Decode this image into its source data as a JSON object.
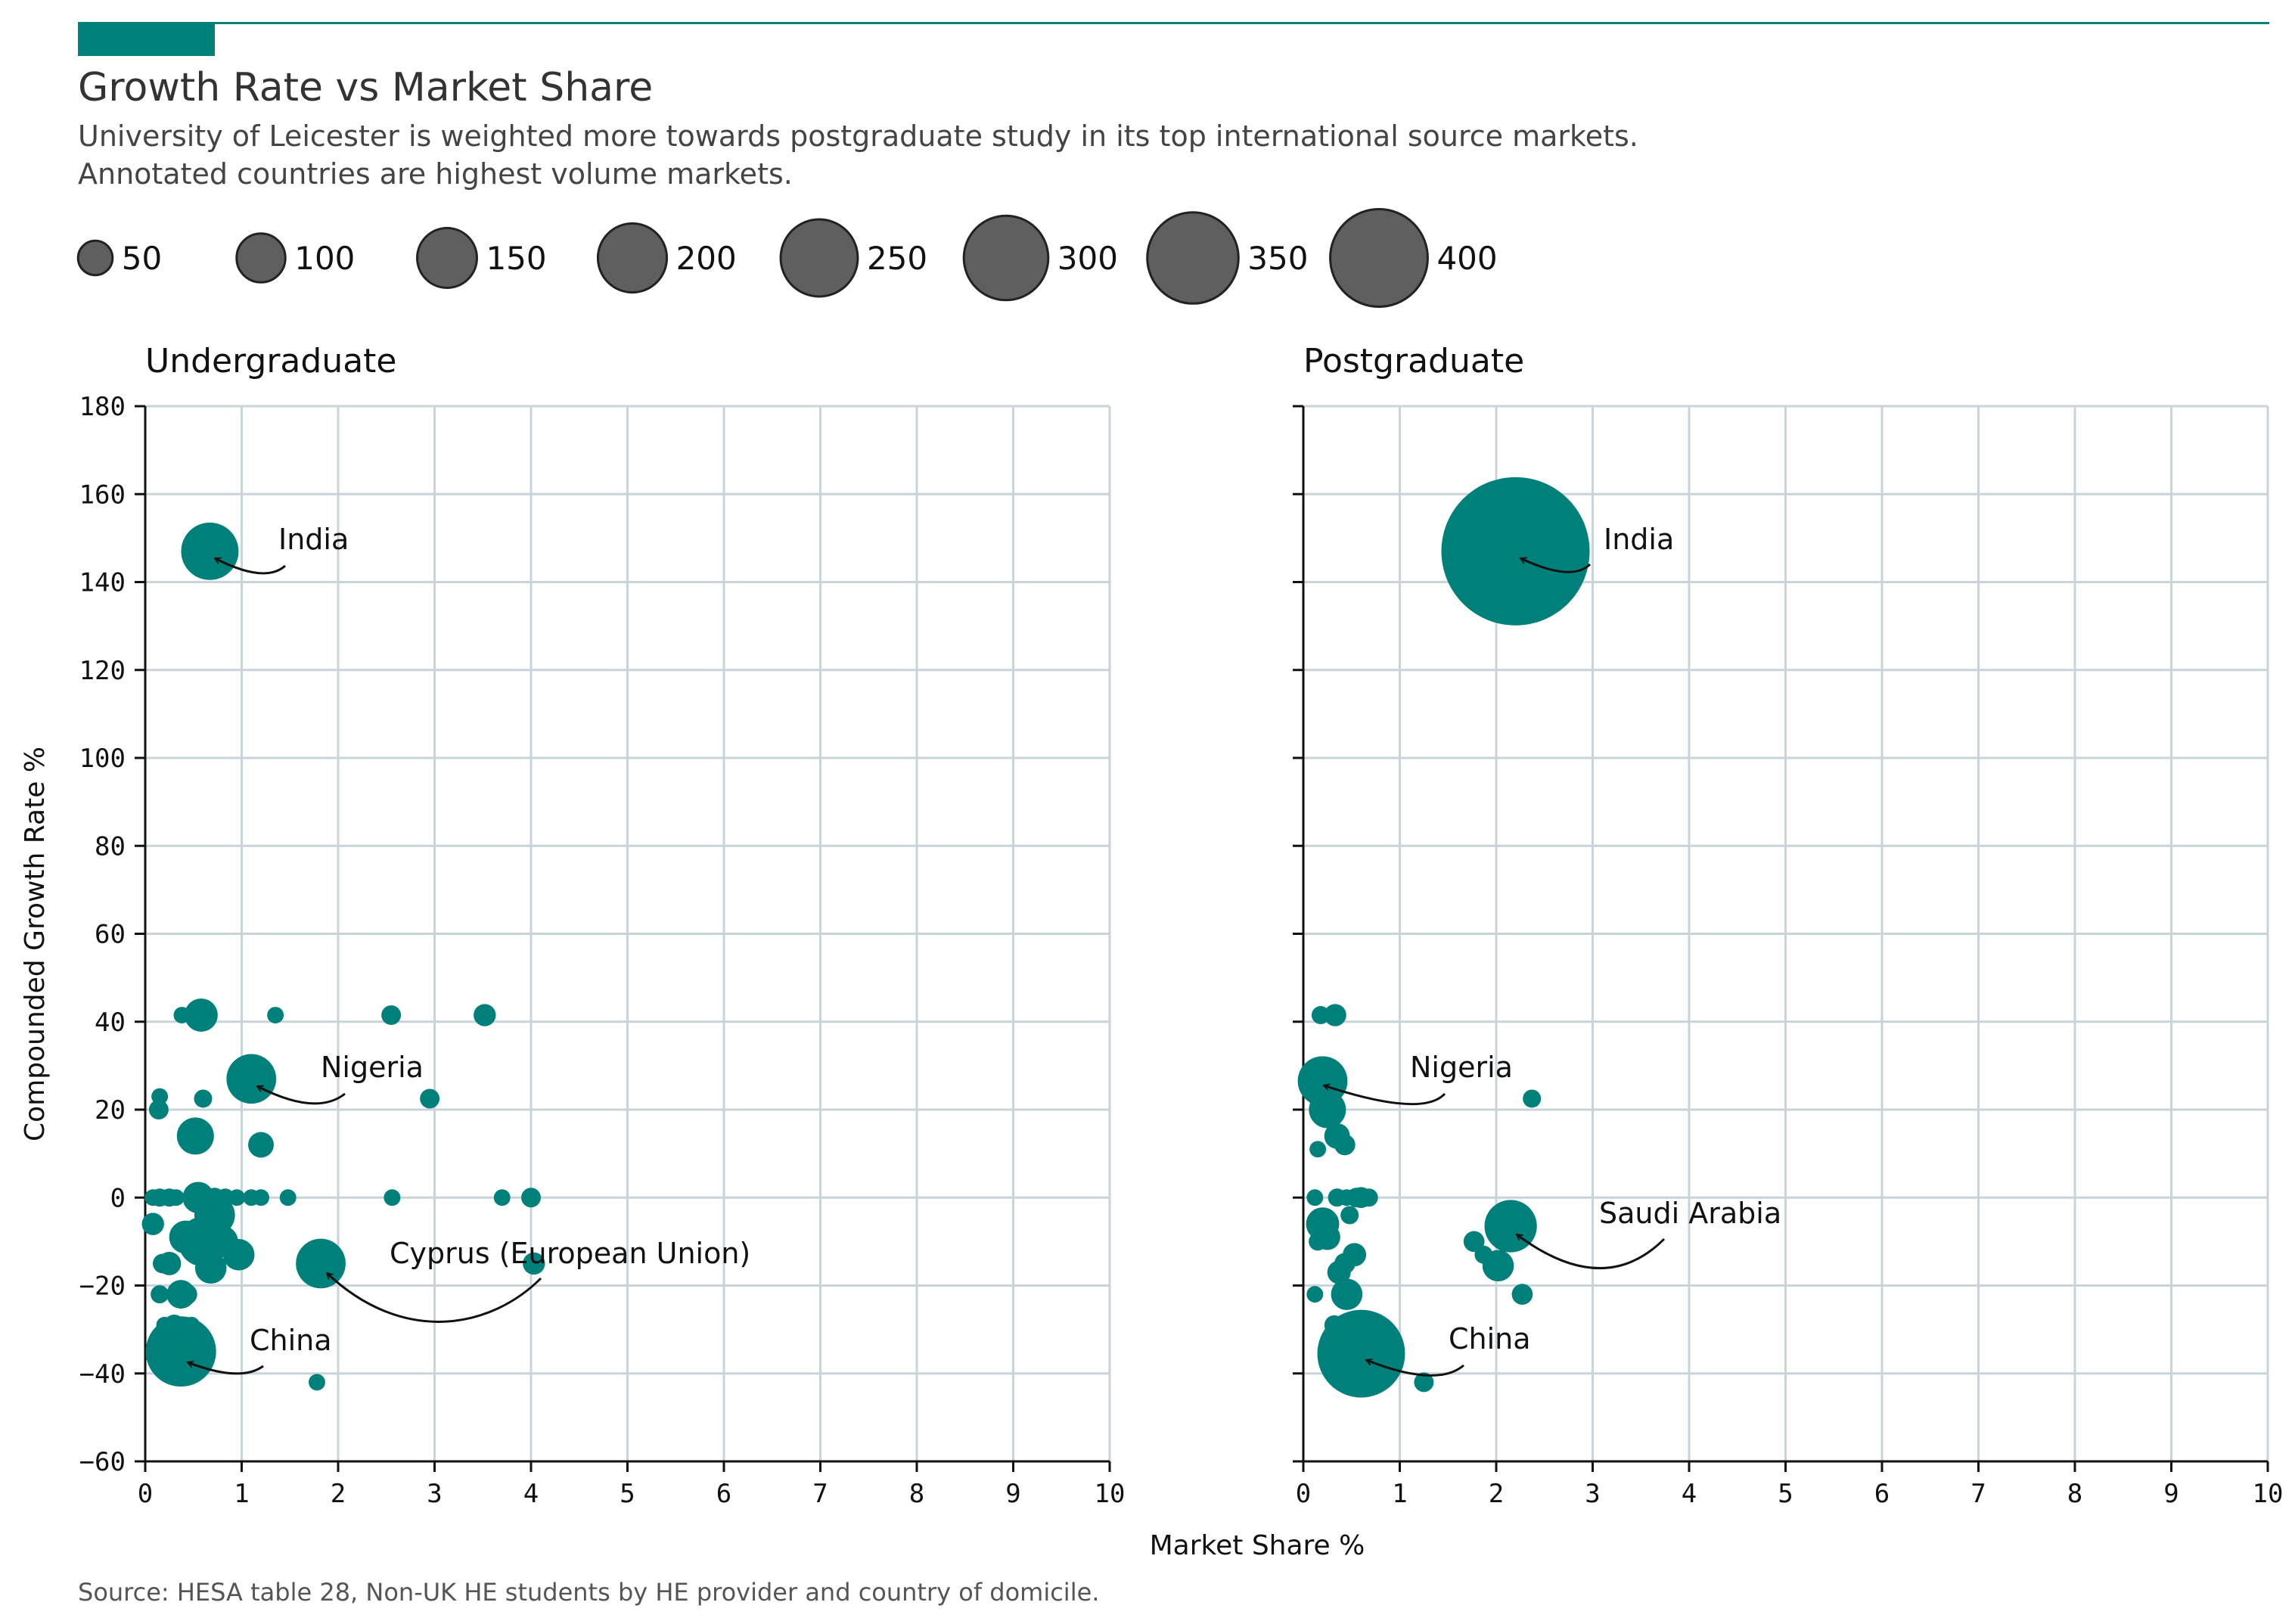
{
  "title": "Growth Rate vs Market Share",
  "subtitle_lines": [
    "University of Leicester is weighted more towards postgraduate study in its top international source markets.",
    "Annotated countries are highest volume markets."
  ],
  "source": "Source: HESA table 28, Non-UK HE students by HE provider and country of domicile.",
  "colors": {
    "accent": "#00807a",
    "points": "#00807a",
    "legend_marker": "#5f5f5f",
    "grid": "#c8d3da"
  },
  "chart_data": {
    "type": "scatter",
    "xlabel": "Market Share %",
    "ylabel": "Compounded Growth Rate %",
    "xlim": [
      0,
      10
    ],
    "ylim": [
      -60,
      180
    ],
    "xticks": [
      0,
      1,
      2,
      3,
      4,
      5,
      6,
      7,
      8,
      9,
      10
    ],
    "yticks": [
      -60,
      -40,
      -20,
      0,
      20,
      40,
      60,
      80,
      100,
      120,
      140,
      160,
      180
    ],
    "grid": true,
    "size_legend": {
      "position": "top",
      "values": [
        50,
        100,
        150,
        200,
        250,
        300,
        350,
        400
      ],
      "labels": [
        "50",
        "100",
        "150",
        "200",
        "250",
        "300",
        "350",
        "400"
      ]
    },
    "panels": [
      {
        "name": "Undergraduate",
        "points": [
          {
            "x": 0.67,
            "y": 147,
            "size": 60
          },
          {
            "x": 1.1,
            "y": 27,
            "size": 45
          },
          {
            "x": 1.82,
            "y": -15,
            "size": 45
          },
          {
            "x": 0.37,
            "y": -35,
            "size": 90
          },
          {
            "x": 0.6,
            "y": -10,
            "size": 45
          },
          {
            "x": 0.72,
            "y": -4,
            "size": 30
          },
          {
            "x": 0.52,
            "y": 14,
            "size": 25
          },
          {
            "x": 0.58,
            "y": 41.5,
            "size": 20
          },
          {
            "x": 0.42,
            "y": -9,
            "size": 20
          },
          {
            "x": 0.8,
            "y": -10,
            "size": 18
          },
          {
            "x": 0.97,
            "y": -13,
            "size": 18
          },
          {
            "x": 0.68,
            "y": -16,
            "size": 18
          },
          {
            "x": 0.55,
            "y": 0,
            "size": 18
          },
          {
            "x": 0.37,
            "y": -22,
            "size": 15
          },
          {
            "x": 1.2,
            "y": 12,
            "size": 12
          },
          {
            "x": 4.03,
            "y": -15,
            "size": 9
          },
          {
            "x": 0.25,
            "y": -15,
            "size": 10
          },
          {
            "x": 0.18,
            "y": -15,
            "size": 7
          },
          {
            "x": 0.08,
            "y": -6,
            "size": 9
          },
          {
            "x": 0.15,
            "y": -22,
            "size": 6
          },
          {
            "x": 0.43,
            "y": -22,
            "size": 8
          },
          {
            "x": 0.3,
            "y": -29,
            "size": 8
          },
          {
            "x": 0.2,
            "y": -29,
            "size": 5
          },
          {
            "x": 0.48,
            "y": -29,
            "size": 5
          },
          {
            "x": 0.1,
            "y": -36,
            "size": 6
          },
          {
            "x": 1.78,
            "y": -42,
            "size": 5
          },
          {
            "x": 0.14,
            "y": 20,
            "size": 7
          },
          {
            "x": 0.15,
            "y": 23,
            "size": 5
          },
          {
            "x": 0.6,
            "y": 22.5,
            "size": 6
          },
          {
            "x": 2.95,
            "y": 22.5,
            "size": 7
          },
          {
            "x": 0.38,
            "y": 41.5,
            "size": 5
          },
          {
            "x": 1.35,
            "y": 41.5,
            "size": 5
          },
          {
            "x": 2.55,
            "y": 41.5,
            "size": 7
          },
          {
            "x": 3.52,
            "y": 41.5,
            "size": 9
          },
          {
            "x": 0.08,
            "y": 0,
            "size": 5
          },
          {
            "x": 0.15,
            "y": 0,
            "size": 6
          },
          {
            "x": 0.25,
            "y": 0,
            "size": 6
          },
          {
            "x": 0.32,
            "y": 0,
            "size": 5
          },
          {
            "x": 0.72,
            "y": 0,
            "size": 7
          },
          {
            "x": 0.83,
            "y": 0,
            "size": 6
          },
          {
            "x": 0.95,
            "y": 0,
            "size": 5
          },
          {
            "x": 1.1,
            "y": 0,
            "size": 5
          },
          {
            "x": 1.2,
            "y": 0,
            "size": 5
          },
          {
            "x": 1.48,
            "y": 0,
            "size": 5
          },
          {
            "x": 2.56,
            "y": 0,
            "size": 5
          },
          {
            "x": 3.7,
            "y": 0,
            "size": 5
          },
          {
            "x": 4.0,
            "y": 0,
            "size": 7
          }
        ],
        "annotations": [
          {
            "text": "India",
            "x": 0.67,
            "y": 147
          },
          {
            "text": "Nigeria",
            "x": 1.1,
            "y": 27
          },
          {
            "text": "Cyprus (European Union)",
            "x": 1.82,
            "y": -15
          },
          {
            "text": "China",
            "x": 0.37,
            "y": -35
          }
        ]
      },
      {
        "name": "Postgraduate",
        "points": [
          {
            "x": 2.2,
            "y": 147,
            "size": 400
          },
          {
            "x": 0.2,
            "y": 26.5,
            "size": 45
          },
          {
            "x": 2.15,
            "y": -6.5,
            "size": 50
          },
          {
            "x": 0.6,
            "y": -35.5,
            "size": 140
          },
          {
            "x": 0.25,
            "y": 20,
            "size": 25
          },
          {
            "x": 0.2,
            "y": -6,
            "size": 20
          },
          {
            "x": 0.25,
            "y": -9,
            "size": 12
          },
          {
            "x": 2.02,
            "y": -15.5,
            "size": 18
          },
          {
            "x": 0.45,
            "y": -22,
            "size": 18
          },
          {
            "x": 0.35,
            "y": 14,
            "size": 12
          },
          {
            "x": 0.43,
            "y": 12,
            "size": 8
          },
          {
            "x": 0.37,
            "y": -17,
            "size": 10
          },
          {
            "x": 0.43,
            "y": -15,
            "size": 8
          },
          {
            "x": 0.53,
            "y": -13,
            "size": 10
          },
          {
            "x": 0.48,
            "y": -4,
            "size": 6
          },
          {
            "x": 0.15,
            "y": -10,
            "size": 6
          },
          {
            "x": 0.12,
            "y": -22,
            "size": 5
          },
          {
            "x": 0.32,
            "y": -29,
            "size": 7
          },
          {
            "x": 0.42,
            "y": -29,
            "size": 5
          },
          {
            "x": 1.25,
            "y": -42,
            "size": 7
          },
          {
            "x": 1.77,
            "y": -10,
            "size": 8
          },
          {
            "x": 1.87,
            "y": -13,
            "size": 6
          },
          {
            "x": 2.27,
            "y": -22,
            "size": 8
          },
          {
            "x": 2.37,
            "y": 22.5,
            "size": 6
          },
          {
            "x": 0.15,
            "y": 22.5,
            "size": 6
          },
          {
            "x": 0.15,
            "y": 11,
            "size": 5
          },
          {
            "x": 0.18,
            "y": 41.5,
            "size": 6
          },
          {
            "x": 0.33,
            "y": 41.5,
            "size": 9
          },
          {
            "x": 0.12,
            "y": 0,
            "size": 5
          },
          {
            "x": 0.35,
            "y": 0,
            "size": 6
          },
          {
            "x": 0.45,
            "y": 0,
            "size": 5
          },
          {
            "x": 0.55,
            "y": 0,
            "size": 7
          },
          {
            "x": 0.6,
            "y": 0,
            "size": 8
          },
          {
            "x": 0.68,
            "y": 0,
            "size": 6
          }
        ],
        "annotations": [
          {
            "text": "India",
            "x": 2.2,
            "y": 147
          },
          {
            "text": "Nigeria",
            "x": 0.2,
            "y": 26.5
          },
          {
            "text": "Saudi Arabia",
            "x": 2.15,
            "y": -6.5
          },
          {
            "text": "China",
            "x": 0.6,
            "y": -35.5
          }
        ]
      }
    ]
  }
}
